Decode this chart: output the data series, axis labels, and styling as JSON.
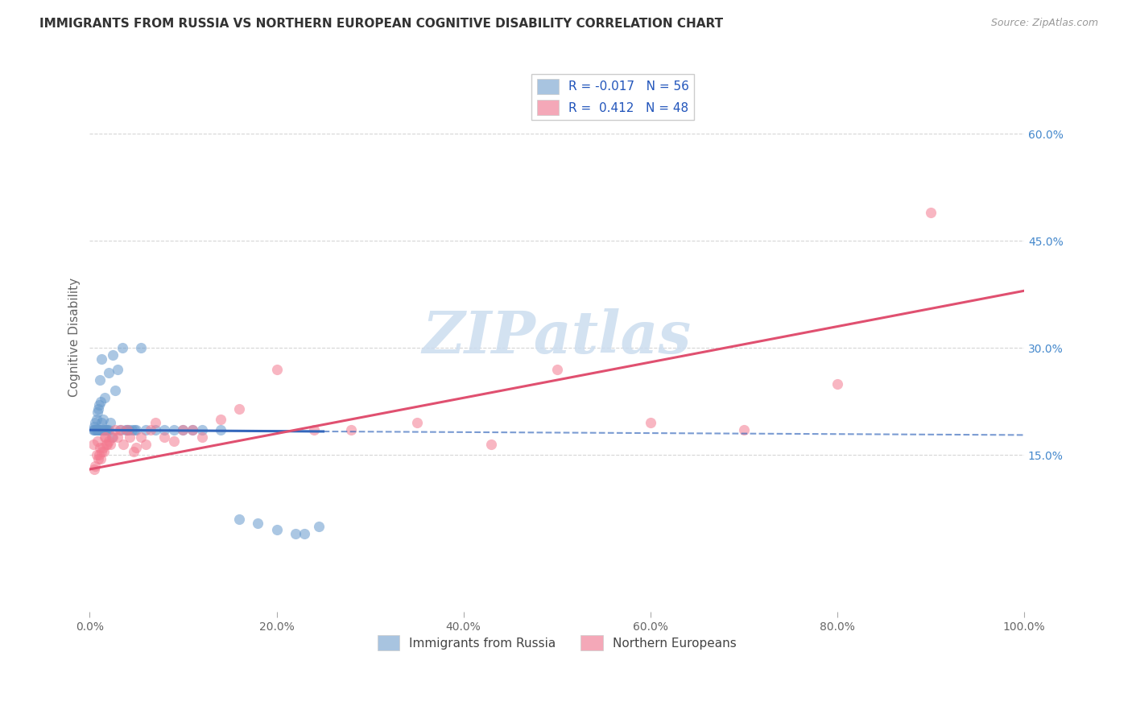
{
  "title": "IMMIGRANTS FROM RUSSIA VS NORTHERN EUROPEAN COGNITIVE DISABILITY CORRELATION CHART",
  "source": "Source: ZipAtlas.com",
  "ylabel": "Cognitive Disability",
  "xlim": [
    0.0,
    1.0
  ],
  "ylim": [
    -0.07,
    0.7
  ],
  "yticks_right": [
    0.15,
    0.3,
    0.45,
    0.6
  ],
  "ytick_labels_right": [
    "15.0%",
    "30.0%",
    "45.0%",
    "60.0%"
  ],
  "xticks": [
    0.0,
    0.2,
    0.4,
    0.6,
    0.8,
    1.0
  ],
  "xtick_labels": [
    "0.0%",
    "20.0%",
    "40.0%",
    "60.0%",
    "80.0%",
    "100.0%"
  ],
  "series1_name": "Immigrants from Russia",
  "series2_name": "Northern Europeans",
  "series1_color": "#6699cc",
  "series2_color": "#f47a90",
  "series1_legend_color": "#a8c4e0",
  "series2_legend_color": "#f4a8b8",
  "series1_R": -0.017,
  "series1_N": 56,
  "series2_R": 0.412,
  "series2_N": 48,
  "blue_line_solid": [
    [
      0.0,
      0.185
    ],
    [
      0.25,
      0.183
    ]
  ],
  "blue_line_dashed": [
    [
      0.25,
      0.183
    ],
    [
      1.0,
      0.178
    ]
  ],
  "pink_line_solid": [
    [
      0.0,
      0.13
    ],
    [
      1.0,
      0.38
    ]
  ],
  "blue_line_color": "#3366bb",
  "pink_line_color": "#e05070",
  "watermark_text": "ZIPatlas",
  "background_color": "#ffffff",
  "grid_color": "#cccccc",
  "series1_x": [
    0.004,
    0.005,
    0.005,
    0.006,
    0.006,
    0.007,
    0.007,
    0.008,
    0.008,
    0.009,
    0.009,
    0.01,
    0.01,
    0.011,
    0.011,
    0.012,
    0.012,
    0.013,
    0.013,
    0.014,
    0.014,
    0.015,
    0.016,
    0.017,
    0.018,
    0.019,
    0.02,
    0.02,
    0.022,
    0.024,
    0.025,
    0.027,
    0.03,
    0.032,
    0.035,
    0.038,
    0.04,
    0.042,
    0.045,
    0.048,
    0.05,
    0.055,
    0.06,
    0.07,
    0.08,
    0.09,
    0.1,
    0.11,
    0.12,
    0.14,
    0.16,
    0.18,
    0.2,
    0.22,
    0.23,
    0.245
  ],
  "series1_y": [
    0.185,
    0.185,
    0.19,
    0.185,
    0.195,
    0.185,
    0.2,
    0.185,
    0.21,
    0.185,
    0.215,
    0.185,
    0.22,
    0.185,
    0.255,
    0.185,
    0.225,
    0.285,
    0.195,
    0.185,
    0.2,
    0.185,
    0.23,
    0.185,
    0.185,
    0.185,
    0.265,
    0.185,
    0.195,
    0.175,
    0.29,
    0.24,
    0.27,
    0.185,
    0.3,
    0.185,
    0.185,
    0.185,
    0.185,
    0.185,
    0.185,
    0.3,
    0.185,
    0.185,
    0.185,
    0.185,
    0.185,
    0.185,
    0.185,
    0.185,
    0.06,
    0.055,
    0.045,
    0.04,
    0.04,
    0.05
  ],
  "series2_x": [
    0.004,
    0.005,
    0.006,
    0.007,
    0.008,
    0.009,
    0.01,
    0.011,
    0.012,
    0.013,
    0.014,
    0.015,
    0.016,
    0.017,
    0.018,
    0.019,
    0.02,
    0.022,
    0.025,
    0.027,
    0.03,
    0.033,
    0.036,
    0.04,
    0.043,
    0.047,
    0.05,
    0.055,
    0.06,
    0.065,
    0.07,
    0.08,
    0.09,
    0.1,
    0.11,
    0.12,
    0.14,
    0.16,
    0.2,
    0.24,
    0.28,
    0.35,
    0.43,
    0.5,
    0.6,
    0.7,
    0.8,
    0.9
  ],
  "series2_y": [
    0.165,
    0.13,
    0.135,
    0.15,
    0.17,
    0.145,
    0.15,
    0.16,
    0.145,
    0.155,
    0.16,
    0.155,
    0.175,
    0.175,
    0.165,
    0.165,
    0.17,
    0.165,
    0.175,
    0.185,
    0.175,
    0.185,
    0.165,
    0.185,
    0.175,
    0.155,
    0.16,
    0.175,
    0.165,
    0.185,
    0.195,
    0.175,
    0.17,
    0.185,
    0.185,
    0.175,
    0.2,
    0.215,
    0.27,
    0.185,
    0.185,
    0.195,
    0.165,
    0.27,
    0.195,
    0.185,
    0.25,
    0.49
  ]
}
